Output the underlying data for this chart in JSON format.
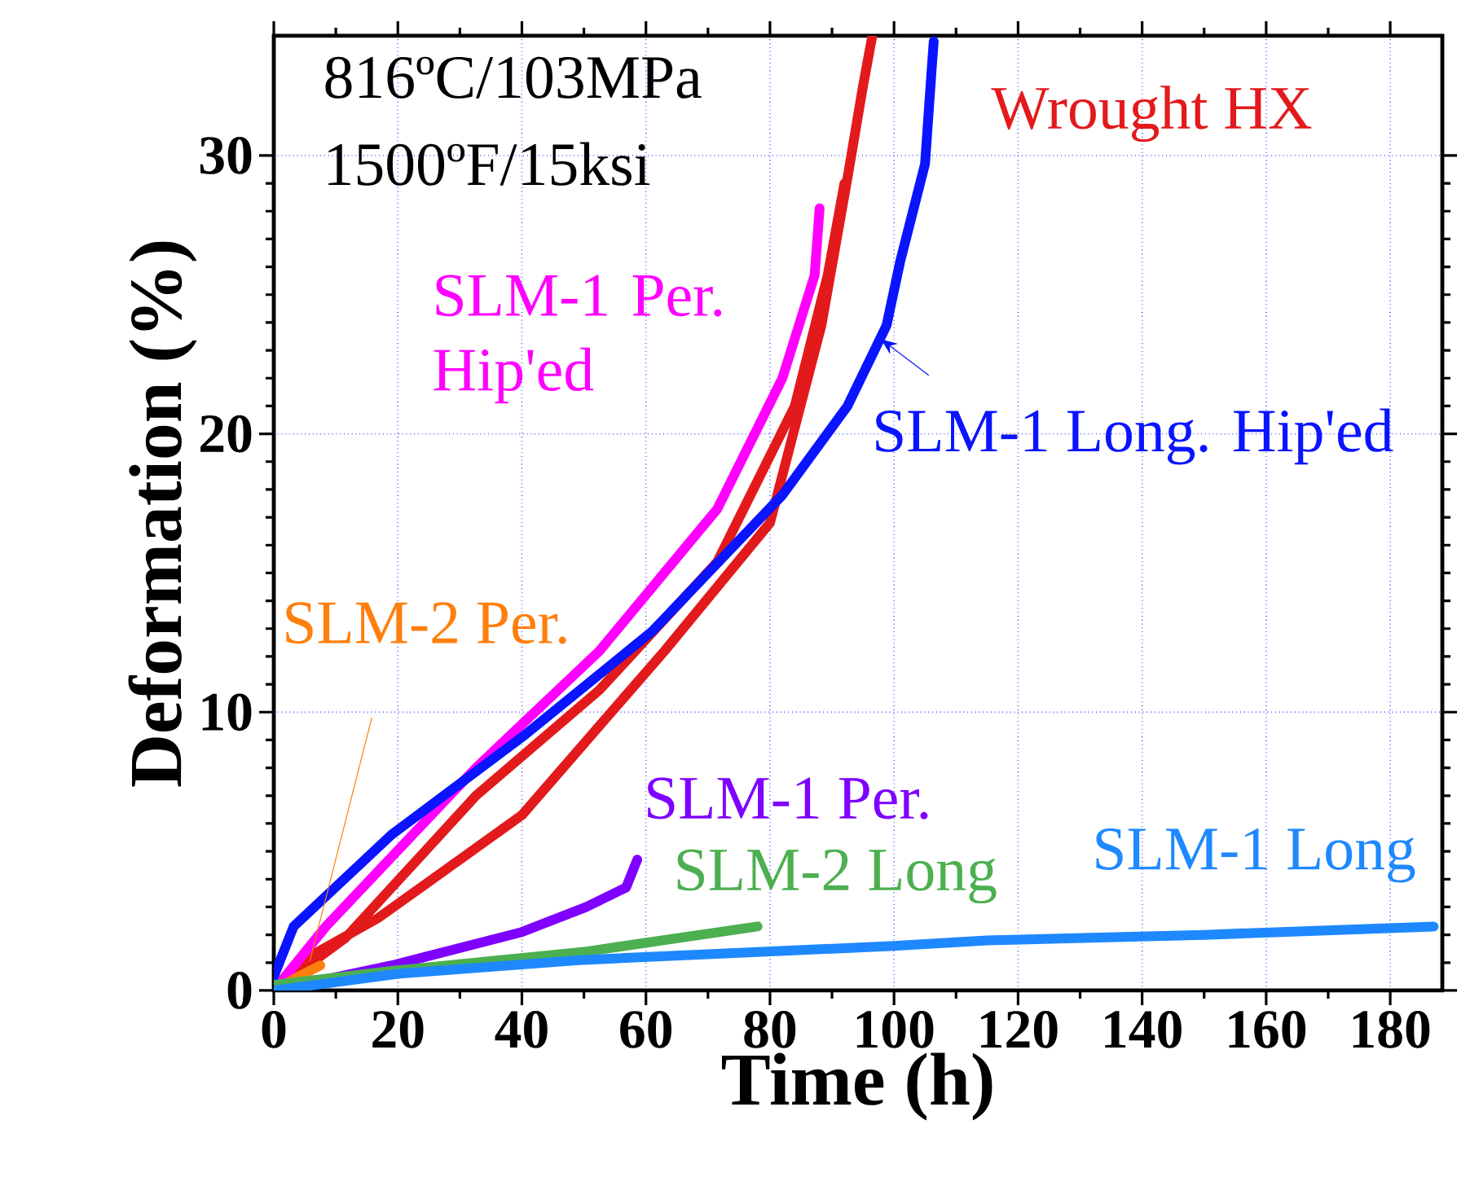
{
  "chart_data": {
    "type": "line",
    "xlabel": "Time (h)",
    "ylabel": "Deformation (%)",
    "xlim": [
      0,
      188.4
    ],
    "ylim": [
      0,
      34.3
    ],
    "xticks": [
      0,
      20,
      40,
      60,
      80,
      100,
      120,
      140,
      160,
      180
    ],
    "yticks": [
      0,
      10,
      20,
      30
    ],
    "grid": true,
    "marker": "none",
    "line_style": "solid",
    "annotations": [
      "816ºC/103MPa",
      "1500ºF/15ksi"
    ],
    "series": [
      {
        "name": "Wrought HX",
        "color": "#e31a1c",
        "x": [
          0,
          4,
          16.8,
          40,
          63,
          80,
          88.3,
          92.5,
          95,
          96.5
        ],
        "values": [
          0,
          1.0,
          2.6,
          6.3,
          12.2,
          16.8,
          23.9,
          29.2,
          32.5,
          34.3
        ]
      },
      {
        "color": "#e31a1c",
        "x": [
          0,
          11.6,
          32.6,
          52.5,
          71.5,
          84,
          89.3,
          92
        ],
        "values": [
          0,
          1.9,
          7.0,
          10.8,
          15.4,
          21,
          25.7,
          29
        ]
      },
      {
        "name": "SLM-1 Per. Hip'ed",
        "color": "#ff00ff",
        "x": [
          0,
          8.4,
          32.6,
          52.5,
          71.5,
          82,
          87.2,
          88
        ],
        "values": [
          0,
          2.3,
          8.0,
          12.2,
          17.3,
          22,
          25.7,
          28.1
        ]
      },
      {
        "name": "SLM-1 Long.  Hip'ed",
        "color": "#0a14ff",
        "x": [
          0,
          3.2,
          19,
          40,
          61,
          82,
          92.5,
          98.8,
          101,
          105,
          106.1,
          106.4
        ],
        "values": [
          0.5,
          2.3,
          5.6,
          9.1,
          12.9,
          17.8,
          21,
          23.9,
          26.2,
          29.7,
          33.2,
          34.1
        ]
      },
      {
        "name": "SLM-2 Per.",
        "color": "#ff7f0e",
        "x": [
          0,
          4,
          7.5
        ],
        "values": [
          0,
          0.5,
          0.9
        ]
      },
      {
        "name": "SLM-1 Per.",
        "color": "#7f00ff",
        "x": [
          0,
          19,
          40,
          50.4,
          56.8,
          58.6
        ],
        "values": [
          0,
          0.9,
          2.1,
          3.0,
          3.7,
          4.7
        ]
      },
      {
        "name": "SLM-2 Long",
        "color": "#4caf50",
        "x": [
          0,
          19,
          50.4,
          78
        ],
        "values": [
          0.2,
          0.7,
          1.4,
          2.3
        ]
      },
      {
        "name": "SLM-1 Long",
        "color": "#1e88ff",
        "x": [
          0,
          20,
          50,
          100,
          115,
          150,
          187
        ],
        "values": [
          0,
          0.6,
          1.1,
          1.6,
          1.8,
          2.0,
          2.3
        ]
      }
    ]
  }
}
